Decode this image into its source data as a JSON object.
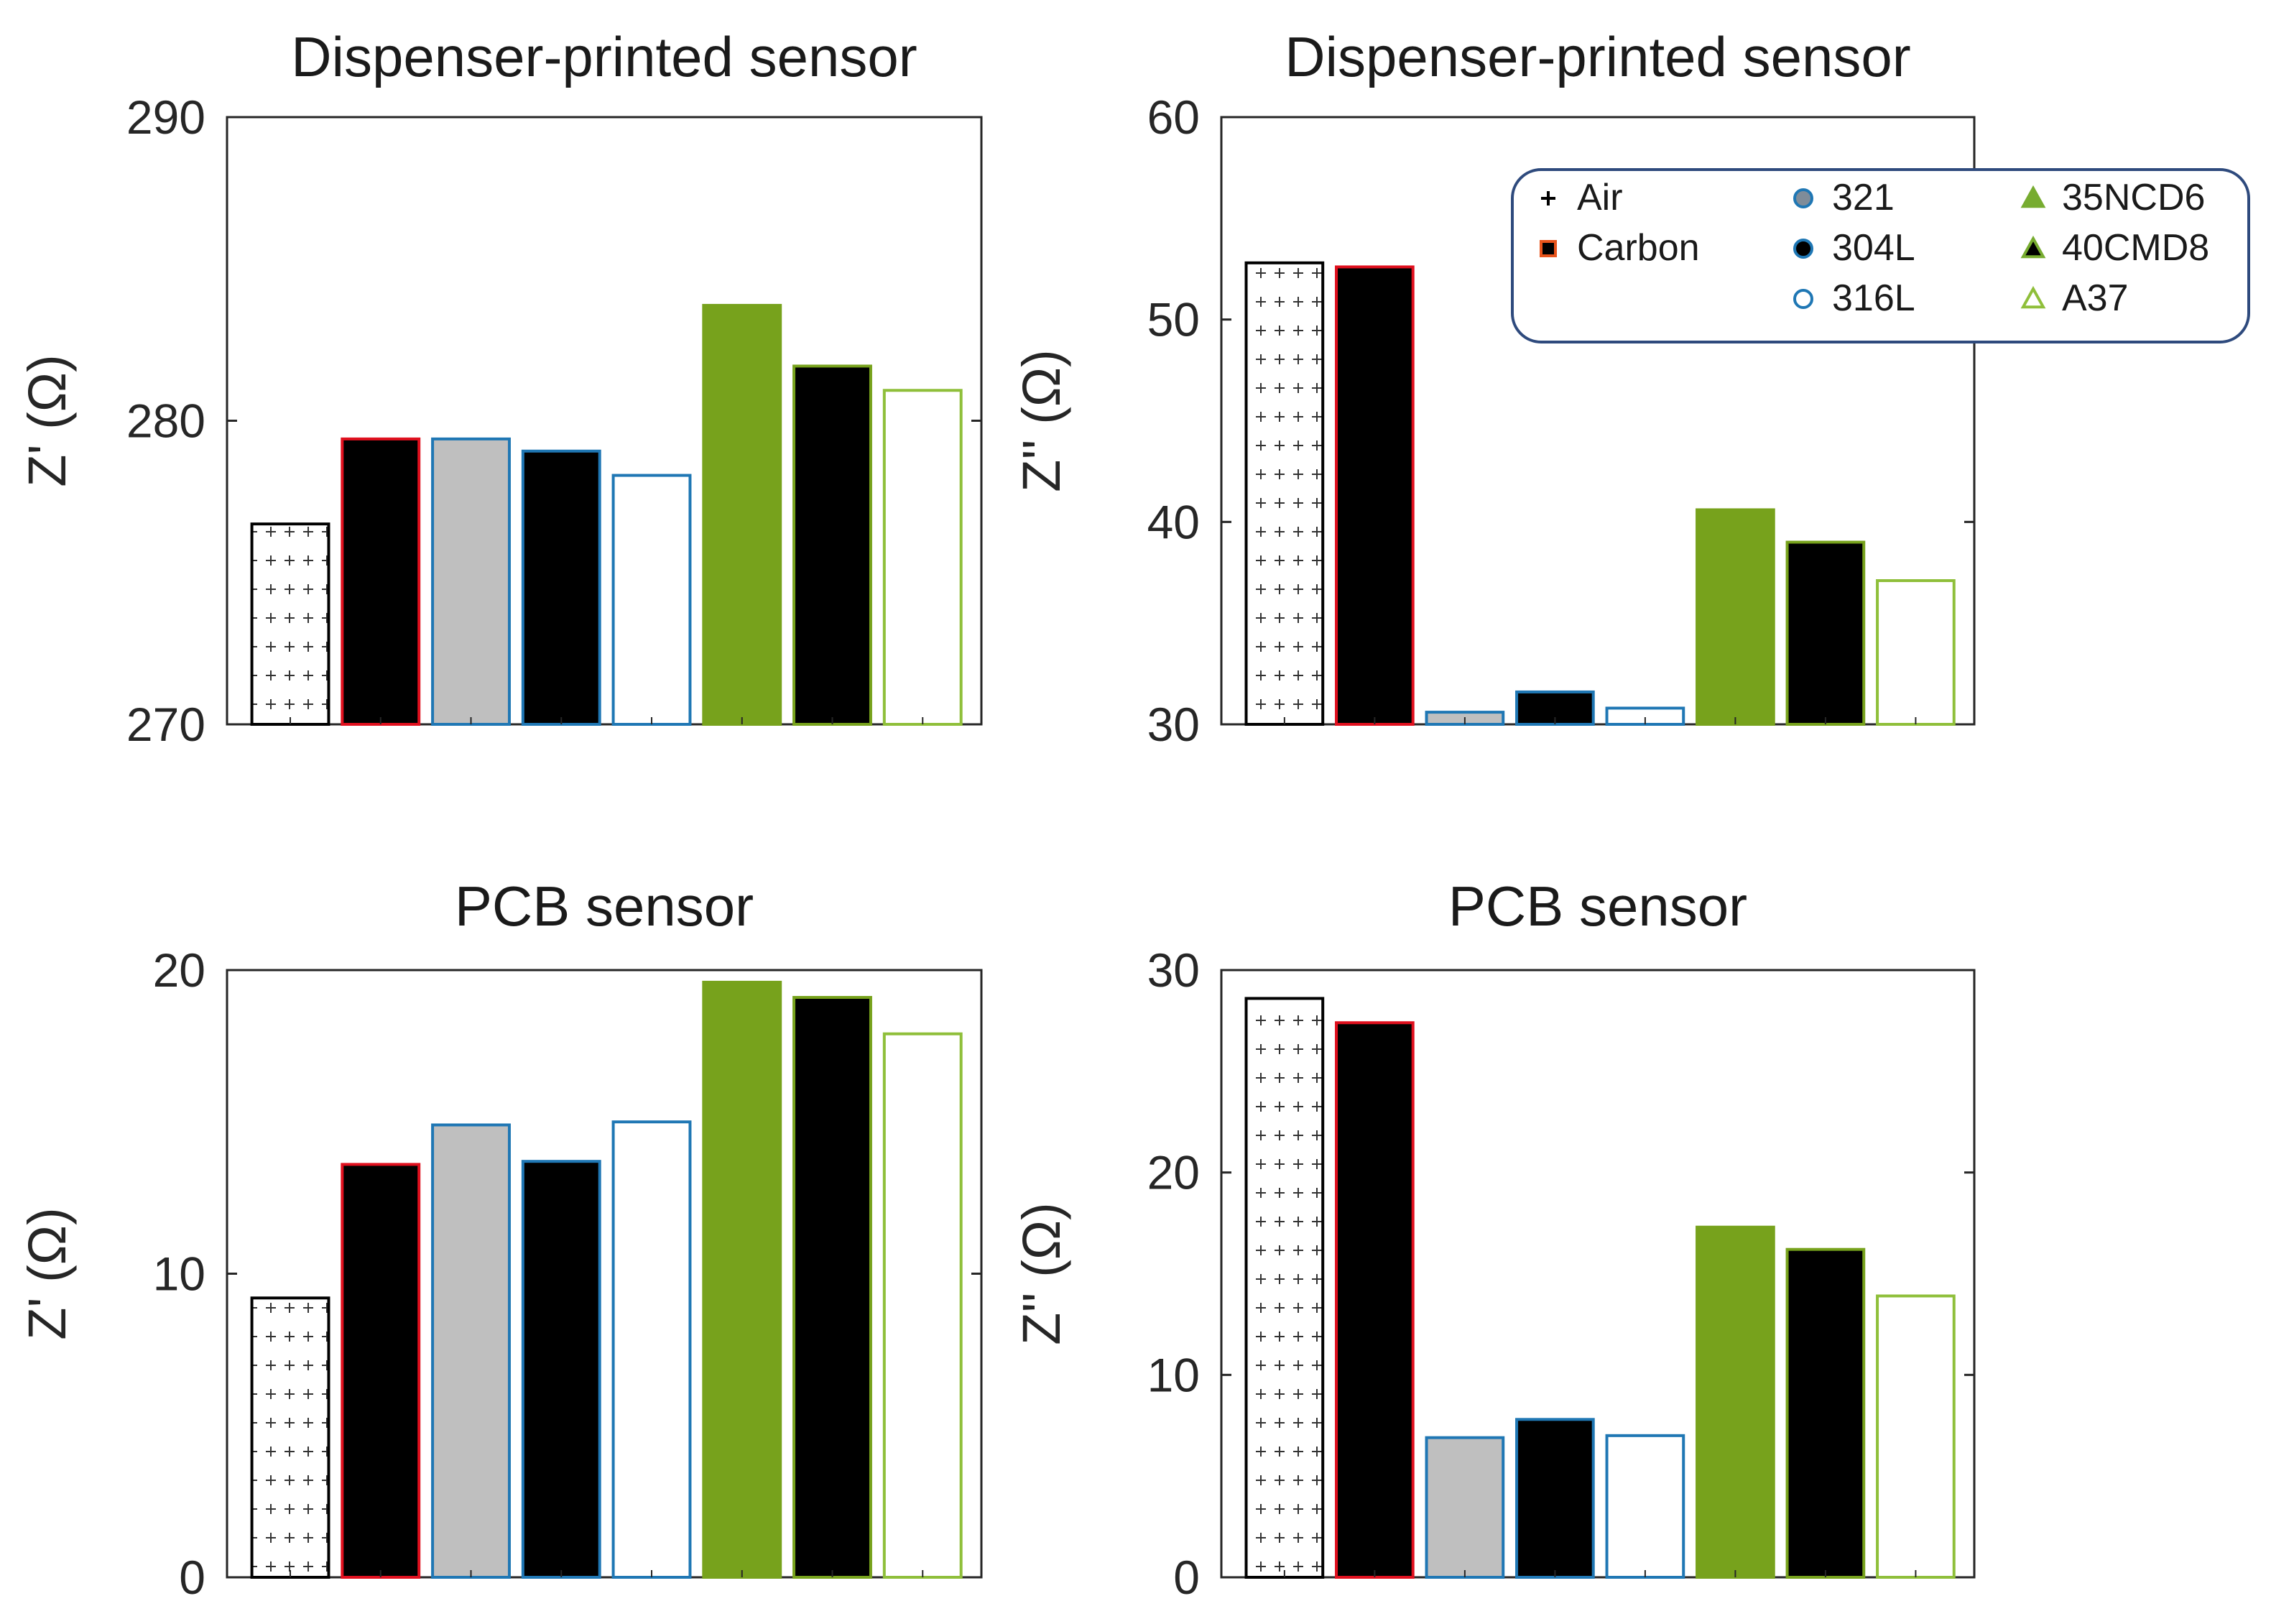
{
  "legend": {
    "items": [
      {
        "label": "Air",
        "marker": "plus",
        "color": "#000000",
        "edge": "#000000"
      },
      {
        "label": "Carbon",
        "marker": "square",
        "color": "#000000",
        "edge": "#e8541c"
      },
      {
        "label": "321",
        "marker": "circle",
        "color": "#7f8c99",
        "edge": "#1f77b4"
      },
      {
        "label": "304L",
        "marker": "circle",
        "color": "#000000",
        "edge": "#1f77b4"
      },
      {
        "label": "316L",
        "marker": "circle-open",
        "color": "#ffffff",
        "edge": "#1f77b4"
      },
      {
        "label": "35NCD6",
        "marker": "triangle",
        "color": "#77ac30",
        "edge": "#77ac30"
      },
      {
        "label": "40CMD8",
        "marker": "triangle",
        "color": "#000000",
        "edge": "#77ac30"
      },
      {
        "label": "A37",
        "marker": "triangle-open",
        "color": "#ffffff",
        "edge": "#8fbf3a"
      }
    ],
    "placement": "top-right of upper-right panel",
    "border_color": "#2e4a7d"
  },
  "chart_data": [
    {
      "type": "bar",
      "title": "Dispenser-printed sensor",
      "ylabel": "Z' (Ω)",
      "ylim": [
        270,
        290
      ],
      "yticks": [
        "270",
        "280",
        "290"
      ],
      "categories": [
        "Air",
        "Carbon",
        "321",
        "304L",
        "316L",
        "35NCD6",
        "40CMD8",
        "A37"
      ],
      "values": [
        276.6,
        279.4,
        279.4,
        279.0,
        278.2,
        283.8,
        281.8,
        281.0
      ]
    },
    {
      "type": "bar",
      "title": "Dispenser-printed sensor",
      "ylabel": "Z'' (Ω)",
      "ylim": [
        30,
        60
      ],
      "yticks": [
        "30",
        "40",
        "50",
        "60"
      ],
      "categories": [
        "Air",
        "Carbon",
        "321",
        "304L",
        "316L",
        "35NCD6",
        "40CMD8",
        "A37"
      ],
      "values": [
        52.8,
        52.6,
        30.6,
        31.6,
        30.8,
        40.6,
        39.0,
        37.1
      ]
    },
    {
      "type": "bar",
      "title": "PCB sensor",
      "ylabel": "Z' (Ω)",
      "ylim": [
        0,
        20
      ],
      "yticks": [
        "0",
        "10",
        "20"
      ],
      "categories": [
        "Air",
        "Carbon",
        "321",
        "304L",
        "316L",
        "35NCD6",
        "40CMD8",
        "A37"
      ],
      "values": [
        9.2,
        13.6,
        14.9,
        13.7,
        15.0,
        19.6,
        19.1,
        17.9
      ]
    },
    {
      "type": "bar",
      "title": "PCB sensor",
      "ylabel": "Z'' (Ω)",
      "ylim": [
        0,
        30
      ],
      "yticks": [
        "0",
        "10",
        "20",
        "30"
      ],
      "categories": [
        "Air",
        "Carbon",
        "321",
        "304L",
        "316L",
        "35NCD6",
        "40CMD8",
        "A37"
      ],
      "values": [
        28.6,
        27.4,
        6.9,
        7.8,
        7.0,
        17.3,
        16.2,
        13.9
      ]
    }
  ]
}
